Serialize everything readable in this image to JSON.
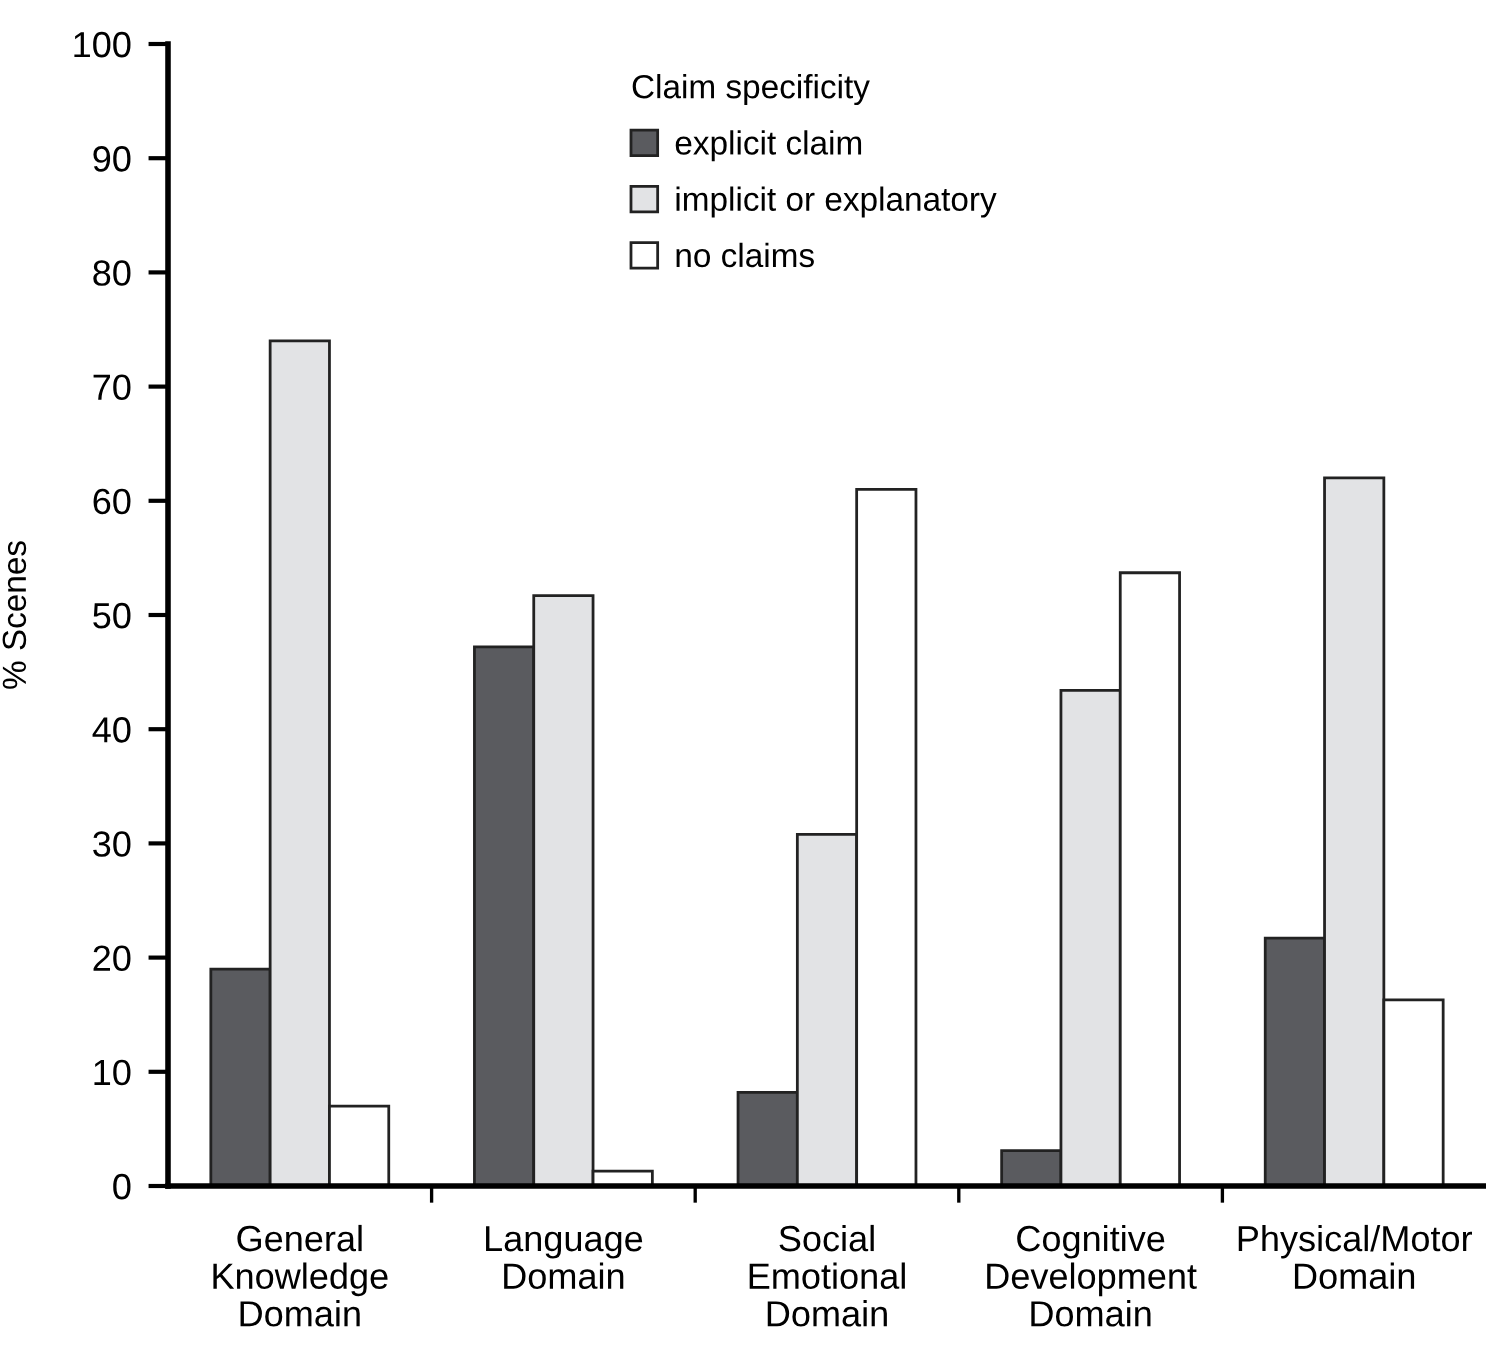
{
  "chart_data": {
    "type": "bar",
    "ylabel": "% Scenes",
    "legend_title": "Claim specificity",
    "legend": "top",
    "grid": false,
    "categories": [
      "General\nKnowledge\nDomain",
      "Language\nDomain",
      "Social\nEmotional\nDomain",
      "Cognitive\nDevelopment\nDomain",
      "Physical/Motor\nDomain"
    ],
    "series": [
      {
        "name": "explicit claim",
        "color": "#5a5b5f",
        "values": [
          19,
          47.2,
          8.2,
          3.1,
          21.7
        ]
      },
      {
        "name": "implicit or explanatory",
        "color": "#e2e3e5",
        "values": [
          74,
          51.7,
          30.8,
          43.4,
          62
        ]
      },
      {
        "name": "no claims",
        "color": "#ffffff",
        "values": [
          7,
          1.3,
          61,
          53.7,
          16.3
        ]
      }
    ],
    "ylim": [
      0,
      100
    ],
    "yticks": [
      0,
      10,
      20,
      30,
      40,
      50,
      60,
      70,
      80,
      90,
      100
    ]
  }
}
